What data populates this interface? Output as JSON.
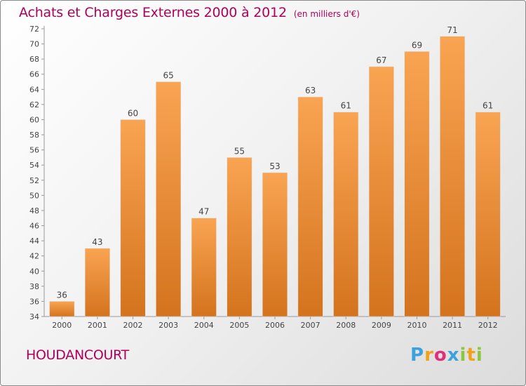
{
  "header": {
    "title": "Achats et Charges Externes 2000 à 2012",
    "subtitle": "(en milliers d'€)"
  },
  "footer": {
    "commune": "HOUDANCOURT",
    "logo": {
      "letters": [
        "P",
        "r",
        "o",
        "x",
        "i",
        "t",
        "i"
      ],
      "colors": [
        "#3aa3dd",
        "#f2a11c",
        "#e1307a",
        "#3aa3dd",
        "#8cc63f",
        "#f2a11c",
        "#8cc63f"
      ]
    }
  },
  "chart_data": {
    "type": "bar",
    "title": "Achats et Charges Externes 2000 à 2012",
    "subtitle": "(en milliers d'€)",
    "categories": [
      "2000",
      "2001",
      "2002",
      "2003",
      "2004",
      "2005",
      "2006",
      "2007",
      "2008",
      "2009",
      "2010",
      "2011",
      "2012"
    ],
    "values": [
      36,
      43,
      60,
      65,
      47,
      55,
      53,
      63,
      61,
      67,
      69,
      71,
      61
    ],
    "ylim": [
      34,
      72
    ],
    "ytick_step": 2,
    "grid": false,
    "bar_color_light": "#f9a452",
    "bar_color_dark": "#d4731e"
  }
}
